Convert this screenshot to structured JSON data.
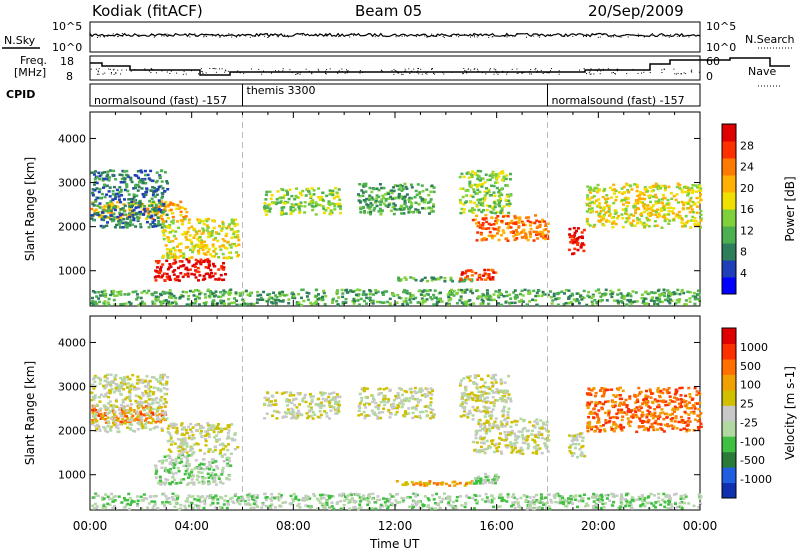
{
  "header": {
    "title": "Kodiak (fitACF)",
    "beam": "Beam 05",
    "date": "20/Sep/2009"
  },
  "top_panels": {
    "nsky_label": "N.Sky",
    "nsky_scale_top": "10^5",
    "nsky_scale_bottom": "10^0",
    "nsearch_label": "N.Search",
    "nsearch_scale_top": "10^5",
    "nsearch_scale_bottom": "10^0",
    "freq_label_1": "Freq.",
    "freq_label_2": "[MHz]",
    "freq_ticks": [
      "18",
      "8"
    ],
    "nave_label": "Nave",
    "nave_ticks": [
      "60",
      "0"
    ],
    "cpid_label": "CPID",
    "cpid_segments": [
      {
        "label": "normalsound (fast)  -157",
        "start_hour": 0,
        "end_hour": 6
      },
      {
        "label": "themis 3300",
        "start_hour": 6,
        "end_hour": 18
      },
      {
        "label": "normalsound (fast)  -157",
        "start_hour": 18,
        "end_hour": 24
      }
    ]
  },
  "colors": {
    "power": [
      "#0000ff",
      "#1f3fb8",
      "#2e7d5b",
      "#4caf50",
      "#7fd13b",
      "#f0e000",
      "#ffb000",
      "#ff7a00",
      "#ff3000",
      "#e00000"
    ],
    "velocity": [
      "#1030b0",
      "#2060e0",
      "#2a7a3a",
      "#40c040",
      "#b0d8a0",
      "#c8c8c8",
      "#d0c000",
      "#f0a000",
      "#ff7000",
      "#ff3000",
      "#e00000"
    ]
  },
  "chart_data": [
    {
      "type": "heatmap",
      "title": "Power",
      "xlabel": "Time UT",
      "ylabel": "Slant Range [km]",
      "xlim": [
        0,
        24
      ],
      "ylim": [
        200,
        4600
      ],
      "x_ticks": [
        "00:00",
        "04:00",
        "08:00",
        "12:00",
        "16:00",
        "20:00",
        "00:00"
      ],
      "y_ticks": [
        "1000",
        "2000",
        "3000",
        "4000"
      ],
      "colorbar_label": "Power [dB]",
      "colorbar_ticks": [
        "4",
        "8",
        "12",
        "16",
        "20",
        "24",
        "28"
      ],
      "scatter_regions": [
        {
          "t0": 0.0,
          "t1": 3.8,
          "r0": 2200,
          "r1": 2600,
          "level": 6
        },
        {
          "t0": 0.0,
          "t1": 3.0,
          "r0": 2000,
          "r1": 3300,
          "level": 2
        },
        {
          "t0": 2.5,
          "t1": 5.3,
          "r0": 800,
          "r1": 1300,
          "level": 9
        },
        {
          "t0": 2.8,
          "t1": 5.8,
          "r0": 1300,
          "r1": 2200,
          "level": 5
        },
        {
          "t0": 6.8,
          "t1": 9.8,
          "r0": 2300,
          "r1": 2900,
          "level": 4
        },
        {
          "t0": 10.5,
          "t1": 13.5,
          "r0": 2300,
          "r1": 3000,
          "level": 3
        },
        {
          "t0": 12.0,
          "t1": 15.0,
          "r0": 780,
          "r1": 880,
          "level": 3
        },
        {
          "t0": 15.0,
          "t1": 18.0,
          "r0": 1700,
          "r1": 2300,
          "level": 7
        },
        {
          "t0": 14.5,
          "t1": 16.5,
          "r0": 2300,
          "r1": 3300,
          "level": 4
        },
        {
          "t0": 14.5,
          "t1": 16.0,
          "r0": 820,
          "r1": 1050,
          "level": 8
        },
        {
          "t0": 18.8,
          "t1": 19.4,
          "r0": 1400,
          "r1": 2000,
          "level": 9
        },
        {
          "t0": 19.5,
          "t1": 24.0,
          "r0": 2000,
          "r1": 3000,
          "level": 5
        },
        {
          "t0": 0.0,
          "t1": 24.0,
          "r0": 250,
          "r1": 600,
          "level": 3
        }
      ]
    },
    {
      "type": "heatmap",
      "title": "Velocity",
      "xlabel": "Time UT",
      "ylabel": "Slant Range [km]",
      "xlim": [
        0,
        24
      ],
      "ylim": [
        200,
        4600
      ],
      "x_ticks": [
        "00:00",
        "04:00",
        "08:00",
        "12:00",
        "16:00",
        "20:00",
        "00:00"
      ],
      "y_ticks": [
        "1000",
        "2000",
        "3000",
        "4000"
      ],
      "colorbar_label": "Velocity [m s-1]",
      "colorbar_ticks": [
        "1000",
        "500",
        "100",
        "25",
        "-25",
        "-100",
        "-500",
        "-1000"
      ],
      "scatter_regions": [
        {
          "t0": 0.0,
          "t1": 3.0,
          "r0": 2200,
          "r1": 2600,
          "level": 8
        },
        {
          "t0": 0.0,
          "t1": 3.0,
          "r0": 2000,
          "r1": 3300,
          "level": 5
        },
        {
          "t0": 2.5,
          "t1": 5.5,
          "r0": 800,
          "r1": 1500,
          "level": 4
        },
        {
          "t0": 3.0,
          "t1": 5.8,
          "r0": 1500,
          "r1": 2200,
          "level": 5
        },
        {
          "t0": 6.8,
          "t1": 9.8,
          "r0": 2300,
          "r1": 2900,
          "level": 5
        },
        {
          "t0": 10.5,
          "t1": 13.5,
          "r0": 2300,
          "r1": 3000,
          "level": 5
        },
        {
          "t0": 12.0,
          "t1": 15.0,
          "r0": 780,
          "r1": 880,
          "level": 7
        },
        {
          "t0": 15.0,
          "t1": 18.0,
          "r0": 1500,
          "r1": 2300,
          "level": 5
        },
        {
          "t0": 14.5,
          "t1": 16.5,
          "r0": 2300,
          "r1": 3300,
          "level": 5
        },
        {
          "t0": 15.0,
          "t1": 16.0,
          "r0": 820,
          "r1": 1050,
          "level": 4
        },
        {
          "t0": 18.8,
          "t1": 19.4,
          "r0": 1400,
          "r1": 2000,
          "level": 5
        },
        {
          "t0": 19.5,
          "t1": 24.0,
          "r0": 2000,
          "r1": 3000,
          "level": 8
        },
        {
          "t0": 0.0,
          "t1": 24.0,
          "r0": 250,
          "r1": 600,
          "level": 4
        }
      ]
    }
  ]
}
